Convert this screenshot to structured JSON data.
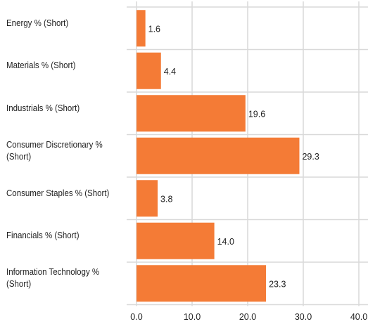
{
  "chart_data": {
    "type": "bar",
    "orientation": "horizontal",
    "categories": [
      [
        "Energy % (Short)"
      ],
      [
        "Materials % (Short)"
      ],
      [
        "Industrials % (Short)"
      ],
      [
        "Consumer Discretionary %",
        "(Short)"
      ],
      [
        "Consumer Staples % (Short)"
      ],
      [
        "Financials % (Short)"
      ],
      [
        "Information Technology %",
        "(Short)"
      ]
    ],
    "values": [
      1.6,
      4.4,
      19.6,
      29.3,
      3.8,
      14.0,
      23.3
    ],
    "value_labels": [
      "1.6",
      "4.4",
      "19.6",
      "29.3",
      "3.8",
      "14.0",
      "23.3"
    ],
    "xlim": [
      0,
      40
    ],
    "xticks": [
      0,
      10,
      20,
      30,
      40
    ],
    "xtick_labels": [
      "0.0",
      "10.0",
      "20.0",
      "30.0",
      "40.0"
    ],
    "grid": true,
    "bar_color": "#f47b36",
    "grid_color": "#d9d9d9"
  }
}
